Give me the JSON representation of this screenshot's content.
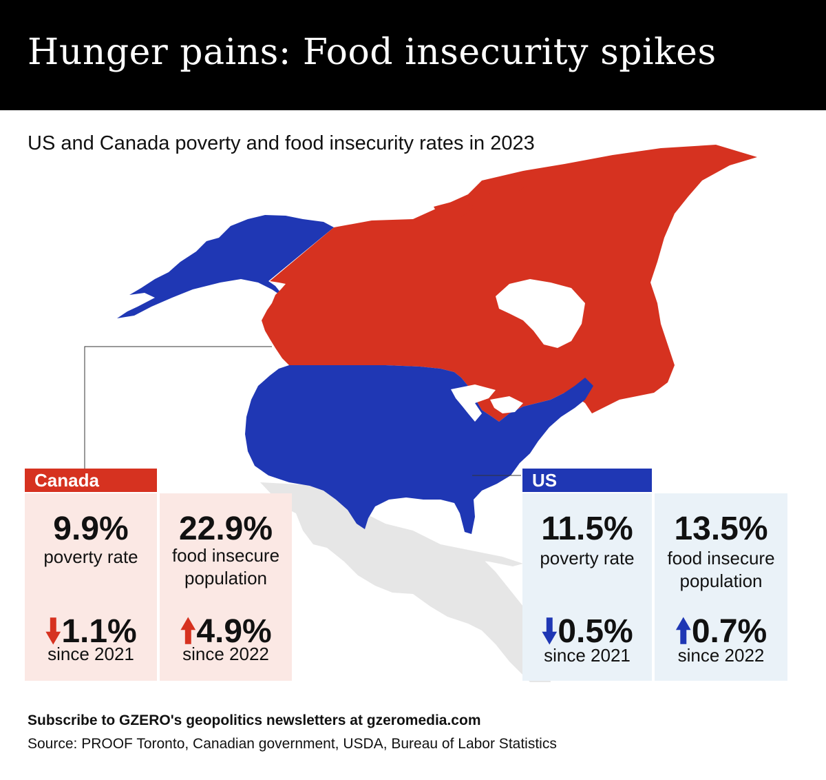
{
  "header": {
    "title": "Hunger pains: Food insecurity spikes"
  },
  "subtitle": "US and Canada poverty and food insecurity rates in 2023",
  "colors": {
    "canada": "#d63220",
    "us": "#1f37b4",
    "mexico": "#e6e6e6",
    "canada_card_bg": "#fbe8e4",
    "us_card_bg": "#eaf2f8"
  },
  "canada": {
    "label": "Canada",
    "poverty": {
      "value": "9.9%",
      "label": "poverty rate",
      "change": "1.1%",
      "direction": "down",
      "since": "since 2021"
    },
    "food": {
      "value": "22.9%",
      "label_line1": "food insecure",
      "label_line2": "population",
      "change": "4.9%",
      "direction": "up",
      "since": "since 2022"
    }
  },
  "us": {
    "label": "US",
    "poverty": {
      "value": "11.5%",
      "label": "poverty rate",
      "change": "0.5%",
      "direction": "down",
      "since": "since 2021"
    },
    "food": {
      "value": "13.5%",
      "label_line1": "food insecure",
      "label_line2": "population",
      "change": "0.7%",
      "direction": "up",
      "since": "since 2022"
    }
  },
  "icons": {
    "down": "arrow-down-icon",
    "up": "arrow-up-icon"
  },
  "footer": {
    "subscribe": "Subscribe to GZERO's geopolitics newsletters at gzeromedia.com",
    "source": "Source: PROOF Toronto, Canadian government, USDA, Bureau of Labor Statistics"
  }
}
